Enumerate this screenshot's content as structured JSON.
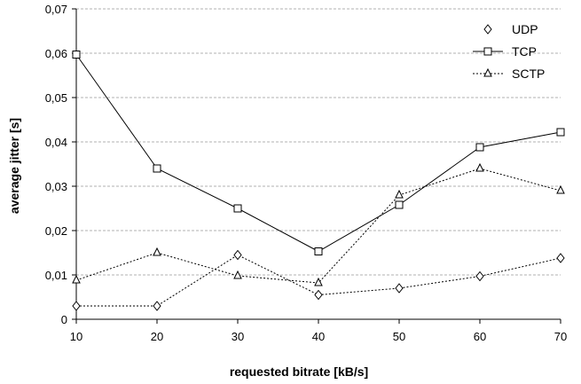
{
  "chart_data": {
    "type": "line",
    "xlabel": "requested bitrate [kB/s]",
    "ylabel": "average jitter [s]",
    "x": [
      10,
      20,
      30,
      40,
      50,
      60,
      70
    ],
    "xlim": [
      10,
      70
    ],
    "ylim": [
      0,
      0.07
    ],
    "x_tick_labels": [
      "10",
      "20",
      "30",
      "40",
      "50",
      "60",
      "70"
    ],
    "y_tick_values": [
      0,
      0.01,
      0.02,
      0.03,
      0.04,
      0.05,
      0.06,
      0.07
    ],
    "y_tick_labels": [
      "0",
      "0,01",
      "0,02",
      "0,03",
      "0,04",
      "0,05",
      "0,06",
      "0,07"
    ],
    "grid": "horizontal dashed",
    "legend_position": "top-right",
    "series": [
      {
        "name": "UDP",
        "marker": "diamond",
        "line": "dotted",
        "values": [
          0.003,
          0.003,
          0.0145,
          0.0055,
          0.007,
          0.0097,
          0.0138
        ]
      },
      {
        "name": "TCP",
        "marker": "square",
        "line": "solid",
        "values": [
          0.0597,
          0.034,
          0.025,
          0.0153,
          0.0258,
          0.0388,
          0.0422
        ]
      },
      {
        "name": "SCTP",
        "marker": "triangle",
        "line": "dotted",
        "values": [
          0.0088,
          0.015,
          0.0098,
          0.0082,
          0.028,
          0.034,
          0.029
        ]
      }
    ]
  }
}
